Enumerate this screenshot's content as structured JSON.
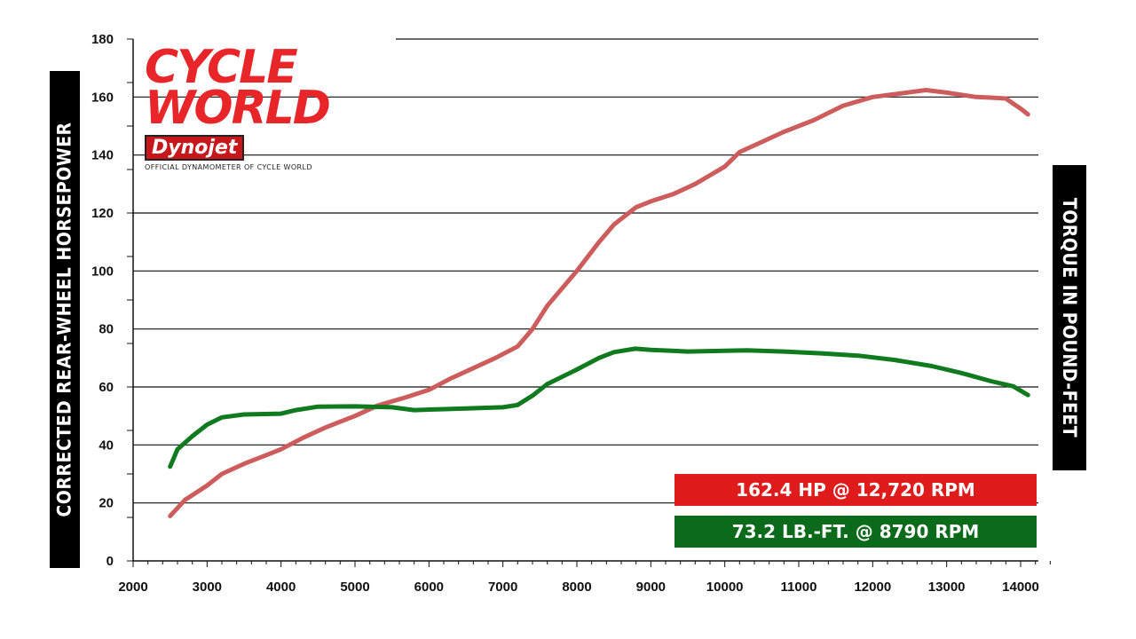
{
  "chart_data": {
    "type": "line",
    "title": "",
    "xlabel": "",
    "ylabel": "CORRECTED REAR-WHEEL HORSEPOWER",
    "ylabel_right": "TORQUE IN POUND-FEET",
    "xlim": [
      2000,
      14500
    ],
    "ylim": [
      0,
      180
    ],
    "x_ticks": [
      2000,
      3000,
      4000,
      5000,
      6000,
      7000,
      8000,
      9000,
      10000,
      11000,
      12000,
      13000,
      14000
    ],
    "y_ticks": [
      0,
      20,
      40,
      60,
      80,
      100,
      120,
      140,
      160,
      180
    ],
    "grid": "horizontal",
    "series": [
      {
        "name": "horsepower",
        "color": "#cd5c5c",
        "points": [
          [
            2500,
            15.5
          ],
          [
            2700,
            21
          ],
          [
            3000,
            26
          ],
          [
            3200,
            30
          ],
          [
            3500,
            33.5
          ],
          [
            3800,
            36.5
          ],
          [
            4000,
            38.5
          ],
          [
            4300,
            42.5
          ],
          [
            4600,
            46
          ],
          [
            5000,
            50
          ],
          [
            5300,
            53.5
          ],
          [
            5700,
            56.5
          ],
          [
            6000,
            59
          ],
          [
            6300,
            63
          ],
          [
            6600,
            66.5
          ],
          [
            6900,
            70
          ],
          [
            7200,
            74
          ],
          [
            7400,
            80
          ],
          [
            7600,
            88
          ],
          [
            8000,
            100
          ],
          [
            8300,
            110
          ],
          [
            8500,
            116
          ],
          [
            8800,
            122
          ],
          [
            9000,
            124
          ],
          [
            9300,
            126.5
          ],
          [
            9600,
            130
          ],
          [
            9800,
            133
          ],
          [
            10000,
            136
          ],
          [
            10200,
            141
          ],
          [
            10500,
            144.5
          ],
          [
            10800,
            148
          ],
          [
            11200,
            152
          ],
          [
            11600,
            157
          ],
          [
            12000,
            160
          ],
          [
            12300,
            161
          ],
          [
            12720,
            162.4
          ],
          [
            13000,
            161.5
          ],
          [
            13400,
            160
          ],
          [
            13600,
            159.8
          ],
          [
            13800,
            159.5
          ],
          [
            14000,
            156
          ],
          [
            14100,
            154
          ]
        ]
      },
      {
        "name": "torque",
        "color": "#0f7a1e",
        "points": [
          [
            2500,
            32.5
          ],
          [
            2600,
            38.5
          ],
          [
            2800,
            43
          ],
          [
            3000,
            47
          ],
          [
            3200,
            49.5
          ],
          [
            3500,
            50.5
          ],
          [
            4000,
            50.8
          ],
          [
            4200,
            52
          ],
          [
            4500,
            53.2
          ],
          [
            5000,
            53.3
          ],
          [
            5500,
            53
          ],
          [
            5800,
            52
          ],
          [
            6000,
            52.2
          ],
          [
            6500,
            52.6
          ],
          [
            7000,
            53
          ],
          [
            7200,
            53.8
          ],
          [
            7400,
            57
          ],
          [
            7600,
            61
          ],
          [
            8000,
            66
          ],
          [
            8300,
            70
          ],
          [
            8500,
            72
          ],
          [
            8790,
            73.2
          ],
          [
            9000,
            72.8
          ],
          [
            9500,
            72.2
          ],
          [
            10000,
            72.5
          ],
          [
            10300,
            72.6
          ],
          [
            10800,
            72.2
          ],
          [
            11300,
            71.6
          ],
          [
            11800,
            70.8
          ],
          [
            12300,
            69.3
          ],
          [
            12800,
            67.2
          ],
          [
            13200,
            64.8
          ],
          [
            13600,
            62
          ],
          [
            13900,
            60.2
          ],
          [
            14100,
            57.2
          ]
        ]
      }
    ],
    "annotations": [
      "162.4 HP @ 12,720 RPM",
      "73.2 LB.-FT. @ 8790 RPM"
    ]
  },
  "logo": {
    "line1": "CYCLE",
    "line2": "WORLD",
    "brand": "Dynojet",
    "tagline": "OFFICIAL DYNAMOMETER OF CYCLE WORLD"
  },
  "colors": {
    "hp_badge": "#e01b1b",
    "torque_badge": "#0c6b1a",
    "label_bg": "#000000"
  }
}
